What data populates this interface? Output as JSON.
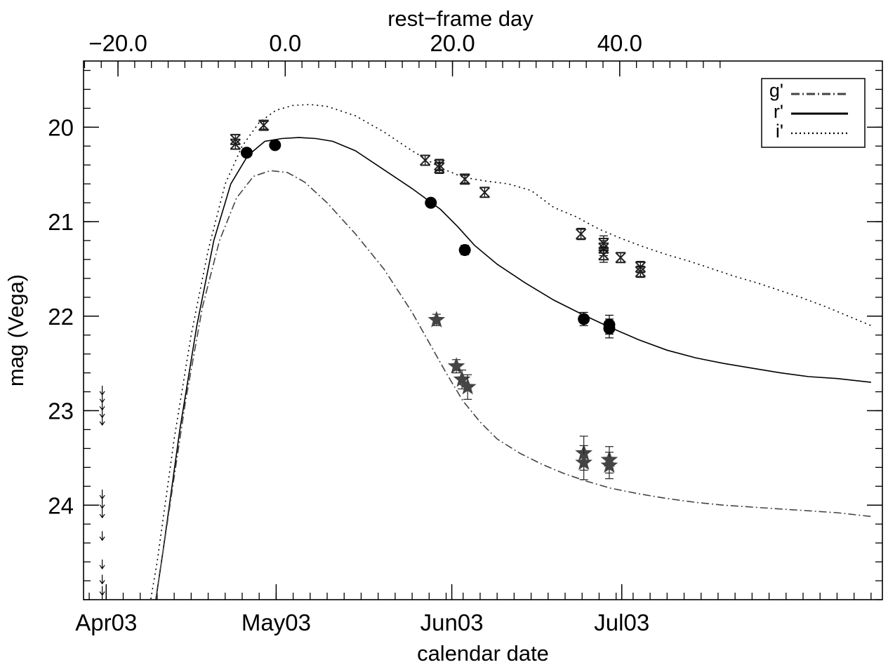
{
  "chart_data": {
    "type": "scatter",
    "xlabel": "calendar date",
    "ylabel": "mag (Vega)",
    "top_xlabel": "rest−frame day",
    "x_range_days": [
      -3,
      138
    ],
    "y_range": [
      25.0,
      19.3
    ],
    "y_inverted": true,
    "grid": false,
    "legend_position": "top-right",
    "x_ticks": [
      {
        "value": 1,
        "label": "Apr03"
      },
      {
        "value": 31,
        "label": "May03"
      },
      {
        "value": 62,
        "label": "Jun03"
      },
      {
        "value": 92,
        "label": "Jul03"
      }
    ],
    "top_ticks": [
      {
        "value": -20.0,
        "label": "−20.0"
      },
      {
        "value": 0.0,
        "label": "0.0"
      },
      {
        "value": 20.0,
        "label": "20.0"
      },
      {
        "value": 40.0,
        "label": "40.0"
      }
    ],
    "y_ticks": [
      {
        "value": 20,
        "label": "20"
      },
      {
        "value": 21,
        "label": "21"
      },
      {
        "value": 22,
        "label": "22"
      },
      {
        "value": 23,
        "label": "23"
      },
      {
        "value": 24,
        "label": "24"
      }
    ],
    "rest_frame_mapping": {
      "day_at_zero": 32.6,
      "calendar_days_per_rest_day": 1.476
    },
    "legend": [
      {
        "label": "g'",
        "style": "dash-dot"
      },
      {
        "label": "r'",
        "style": "solid"
      },
      {
        "label": "i'",
        "style": "dotted"
      }
    ],
    "curves": [
      {
        "band": "i'",
        "style": "dotted",
        "color": "#000000",
        "x": [
          8,
          10,
          13,
          16,
          19,
          22,
          25,
          28,
          31,
          34,
          37,
          40,
          45,
          50,
          55,
          60,
          64,
          68,
          72,
          76,
          80,
          84,
          88,
          92,
          96,
          100,
          104,
          108,
          112,
          116,
          120,
          124,
          128,
          132,
          136
        ],
        "y": [
          25.3,
          24.6,
          23.3,
          22.2,
          21.3,
          20.6,
          20.2,
          19.95,
          19.82,
          19.77,
          19.76,
          19.78,
          19.88,
          20.05,
          20.25,
          20.43,
          20.53,
          20.57,
          20.6,
          20.67,
          20.85,
          20.95,
          21.08,
          21.18,
          21.27,
          21.35,
          21.42,
          21.5,
          21.58,
          21.65,
          21.73,
          21.81,
          21.9,
          22.0,
          22.1
        ]
      },
      {
        "band": "r'",
        "style": "solid",
        "color": "#000000",
        "x": [
          9,
          11,
          14,
          17,
          20,
          23,
          26,
          29,
          32,
          35,
          38,
          41,
          45,
          50,
          55,
          60,
          63,
          66,
          70,
          75,
          80,
          85,
          90,
          95,
          100,
          105,
          110,
          115,
          120,
          125,
          130,
          136
        ],
        "y": [
          25.3,
          24.5,
          23.2,
          22.1,
          21.2,
          20.6,
          20.3,
          20.15,
          20.12,
          20.11,
          20.12,
          20.15,
          20.25,
          20.45,
          20.65,
          20.87,
          21.05,
          21.25,
          21.45,
          21.65,
          21.83,
          21.98,
          22.12,
          22.25,
          22.36,
          22.44,
          22.5,
          22.55,
          22.6,
          22.64,
          22.66,
          22.7
        ]
      },
      {
        "band": "g'",
        "style": "dash-dot",
        "color": "#444444",
        "x": [
          9,
          12,
          15,
          18,
          21,
          24,
          27,
          30,
          33,
          36,
          40,
          45,
          50,
          55,
          58,
          61,
          64,
          67,
          70,
          74,
          78,
          82,
          86,
          90,
          95,
          100,
          105,
          110,
          115,
          120,
          125,
          130,
          136
        ],
        "y": [
          25.3,
          24.1,
          22.9,
          21.9,
          21.2,
          20.75,
          20.52,
          20.46,
          20.48,
          20.58,
          20.8,
          21.13,
          21.5,
          21.96,
          22.28,
          22.6,
          22.9,
          23.12,
          23.3,
          23.45,
          23.57,
          23.67,
          23.75,
          23.82,
          23.88,
          23.93,
          23.97,
          24.0,
          24.02,
          24.04,
          24.06,
          24.08,
          24.12
        ]
      }
    ],
    "points": {
      "i'": [
        {
          "x": 23.8,
          "y": 20.18,
          "err": 0.05
        },
        {
          "x": 23.8,
          "y": 20.13,
          "err": 0.05
        },
        {
          "x": 28.8,
          "y": 19.98,
          "err": 0.04
        },
        {
          "x": 57.3,
          "y": 20.35,
          "err": 0.05
        },
        {
          "x": 59.8,
          "y": 20.43,
          "err": 0.06
        },
        {
          "x": 59.8,
          "y": 20.4,
          "err": 0.06
        },
        {
          "x": 64.3,
          "y": 20.55,
          "err": 0.04
        },
        {
          "x": 67.8,
          "y": 20.69,
          "err": 0.05
        },
        {
          "x": 84.8,
          "y": 21.13,
          "err": 0.06
        },
        {
          "x": 88.8,
          "y": 21.28,
          "err": 0.08
        },
        {
          "x": 88.8,
          "y": 21.35,
          "err": 0.08
        },
        {
          "x": 88.8,
          "y": 21.23,
          "err": 0.08
        },
        {
          "x": 91.8,
          "y": 21.38,
          "err": 0.05
        },
        {
          "x": 95.3,
          "y": 21.48,
          "err": 0.06
        },
        {
          "x": 95.3,
          "y": 21.53,
          "err": 0.06
        }
      ],
      "r'": [
        {
          "x": 25.8,
          "y": 20.27,
          "err": 0.03
        },
        {
          "x": 30.8,
          "y": 20.19,
          "err": 0.03
        },
        {
          "x": 58.3,
          "y": 20.8,
          "err": 0.03
        },
        {
          "x": 64.3,
          "y": 21.3,
          "err": 0.05
        },
        {
          "x": 85.3,
          "y": 22.03,
          "err": 0.07
        },
        {
          "x": 89.8,
          "y": 22.09,
          "err": 0.1
        },
        {
          "x": 89.8,
          "y": 22.13,
          "err": 0.1
        }
      ],
      "g'": [
        {
          "x": 59.3,
          "y": 22.04,
          "err": 0.06
        },
        {
          "x": 62.8,
          "y": 22.53,
          "err": 0.07
        },
        {
          "x": 63.8,
          "y": 22.67,
          "err": 0.1
        },
        {
          "x": 64.8,
          "y": 22.75,
          "err": 0.13
        },
        {
          "x": 85.3,
          "y": 23.45,
          "err": 0.18
        },
        {
          "x": 85.3,
          "y": 23.55,
          "err": 0.18
        },
        {
          "x": 89.8,
          "y": 23.52,
          "err": 0.14
        },
        {
          "x": 89.8,
          "y": 23.58,
          "err": 0.14
        }
      ]
    },
    "upper_limits": [
      {
        "x": 0.3,
        "y": 22.78
      },
      {
        "x": 0.3,
        "y": 22.86
      },
      {
        "x": 0.3,
        "y": 22.94
      },
      {
        "x": 0.3,
        "y": 23.02
      },
      {
        "x": 0.3,
        "y": 23.1
      },
      {
        "x": 0.3,
        "y": 23.88
      },
      {
        "x": 0.3,
        "y": 23.98
      },
      {
        "x": 0.3,
        "y": 24.08
      },
      {
        "x": 0.3,
        "y": 24.32
      },
      {
        "x": 0.3,
        "y": 24.62
      },
      {
        "x": 0.3,
        "y": 24.78
      },
      {
        "x": 0.3,
        "y": 24.9
      },
      {
        "x": 0.3,
        "y": 25.0
      }
    ]
  }
}
